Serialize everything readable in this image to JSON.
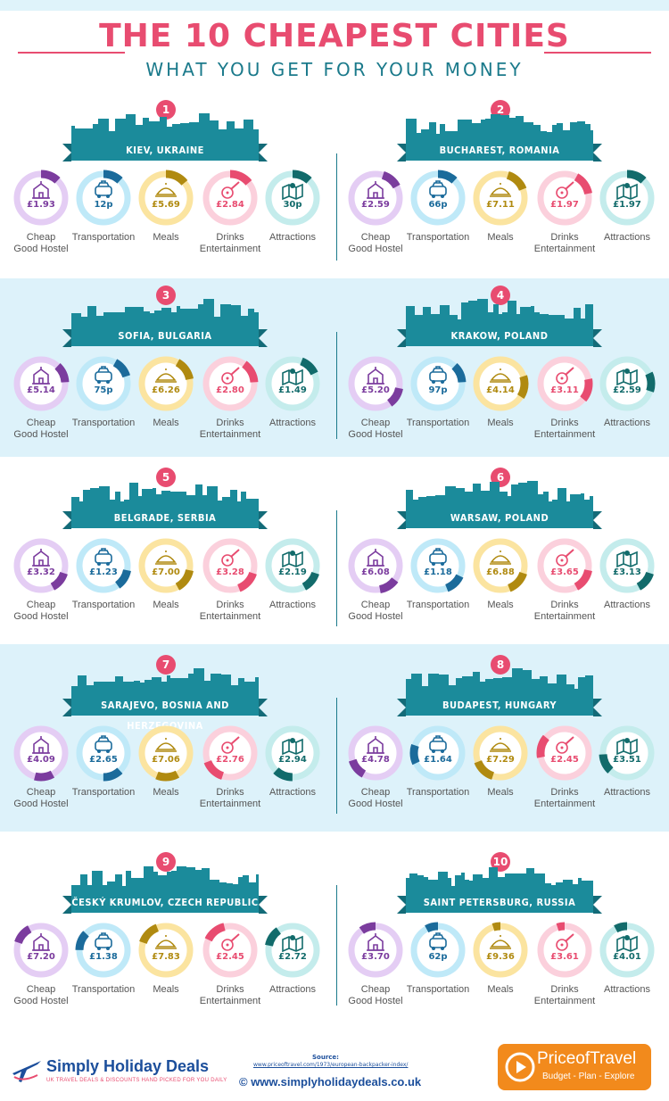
{
  "header": {
    "title": "THE 10 CHEAPEST CITIES",
    "subtitle": "WHAT YOU GET FOR YOUR MONEY"
  },
  "categories": {
    "hostel": "Cheap\nGood Hostel",
    "transport": "Transportation",
    "meals": "Meals",
    "drinks": "Drinks\nEntertainment",
    "attractions": "Attractions"
  },
  "colors": {
    "pink": "#e84c70",
    "teal": "#1b8b9b",
    "hostel_light": "#e4cdf4",
    "hostel_dark": "#7b3c9e",
    "transport_light": "#bfe9f8",
    "transport_dark": "#1b6b9b",
    "meals_light": "#fbe4a0",
    "meals_dark": "#b08a10",
    "drinks_light": "#fbd0dc",
    "drinks_dark": "#e84c70",
    "attractions_light": "#c4ecec",
    "attractions_dark": "#126b6b"
  },
  "cities": [
    {
      "rank": "1",
      "name": "KIEV, UKRAINE",
      "hostel": "£1.93",
      "transport": "12p",
      "meals": "£5.69",
      "drinks": "£2.84",
      "attractions": "30p"
    },
    {
      "rank": "2",
      "name": "BUCHAREST, ROMANIA",
      "hostel": "£2.59",
      "transport": "66p",
      "meals": "£7.11",
      "drinks": "£1.97",
      "attractions": "£1.97"
    },
    {
      "rank": "3",
      "name": "SOFIA, BULGARIA",
      "hostel": "£5.14",
      "transport": "75p",
      "meals": "£6.26",
      "drinks": "£2.80",
      "attractions": "£1.49"
    },
    {
      "rank": "4",
      "name": "KRAKOW, POLAND",
      "hostel": "£5.20",
      "transport": "97p",
      "meals": "£4.14",
      "drinks": "£3.11",
      "attractions": "£2.59"
    },
    {
      "rank": "5",
      "name": "BELGRADE, SERBIA",
      "hostel": "£3.32",
      "transport": "£1.23",
      "meals": "£7.00",
      "drinks": "£3.28",
      "attractions": "£2.19"
    },
    {
      "rank": "6",
      "name": "WARSAW, POLAND",
      "hostel": "£6.08",
      "transport": "£1.18",
      "meals": "£6.88",
      "drinks": "£3.65",
      "attractions": "£3.13"
    },
    {
      "rank": "7",
      "name": "SARAJEVO, BOSNIA AND HERZEGOVINA",
      "hostel": "£4.09",
      "transport": "£2.65",
      "meals": "£7.06",
      "drinks": "£2.76",
      "attractions": "£2.94"
    },
    {
      "rank": "8",
      "name": "BUDAPEST, HUNGARY",
      "hostel": "£4.78",
      "transport": "£1.64",
      "meals": "£7.29",
      "drinks": "£2.45",
      "attractions": "£3.51"
    },
    {
      "rank": "9",
      "name": "ČESKÝ KRUMLOV, CZECH REPUBLIC",
      "hostel": "£7.20",
      "transport": "£1.38",
      "meals": "£7.83",
      "drinks": "£2.45",
      "attractions": "£2.72"
    },
    {
      "rank": "10",
      "name": "SAINT PETERSBURG, RUSSIA",
      "hostel": "£3.70",
      "transport": "62p",
      "meals": "£9.36",
      "drinks": "£3.61",
      "attractions": "£4.01"
    }
  ],
  "footer": {
    "brand": "Simply Holiday Deals",
    "tagline": "UK TRAVEL DEALS & DISCOUNTS HAND PICKED FOR YOU DAILY",
    "source_label": "Source:",
    "source_url": "www.priceoftravel.com/1973/european-backpacker-index/",
    "site": "© www.simplyholidaydeals.co.uk",
    "partner_name": "PriceofTravel",
    "partner_tagline": "Budget - Plan - Explore"
  }
}
